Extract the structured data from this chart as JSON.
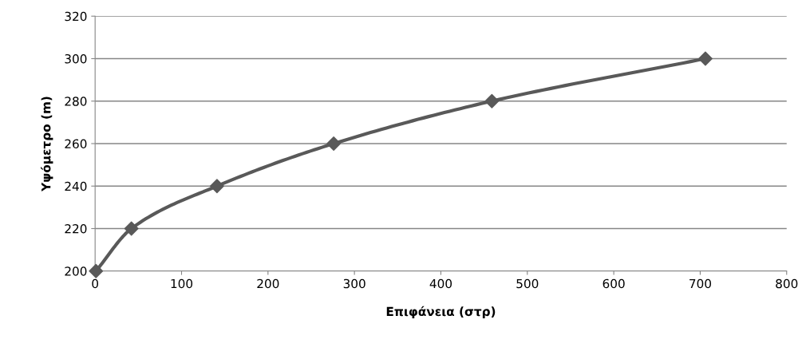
{
  "chart_data": {
    "type": "line",
    "xlabel": "Επιφάνεια (στρ)",
    "ylabel": "Υψόμετρο (m)",
    "x": [
      1,
      42,
      141,
      276,
      459,
      706
    ],
    "series": [
      {
        "color": "#595959",
        "values": [
          200,
          220,
          240,
          260,
          280,
          300
        ]
      }
    ],
    "marker": "diamond",
    "line_style": "solid",
    "xlim": [
      0,
      800
    ],
    "xticks": [
      0,
      100,
      200,
      300,
      400,
      500,
      600,
      700,
      800
    ],
    "ylim": [
      200,
      320
    ],
    "yticks": [
      200,
      220,
      240,
      260,
      280,
      300,
      320
    ],
    "grid": "y",
    "legend": false
  }
}
